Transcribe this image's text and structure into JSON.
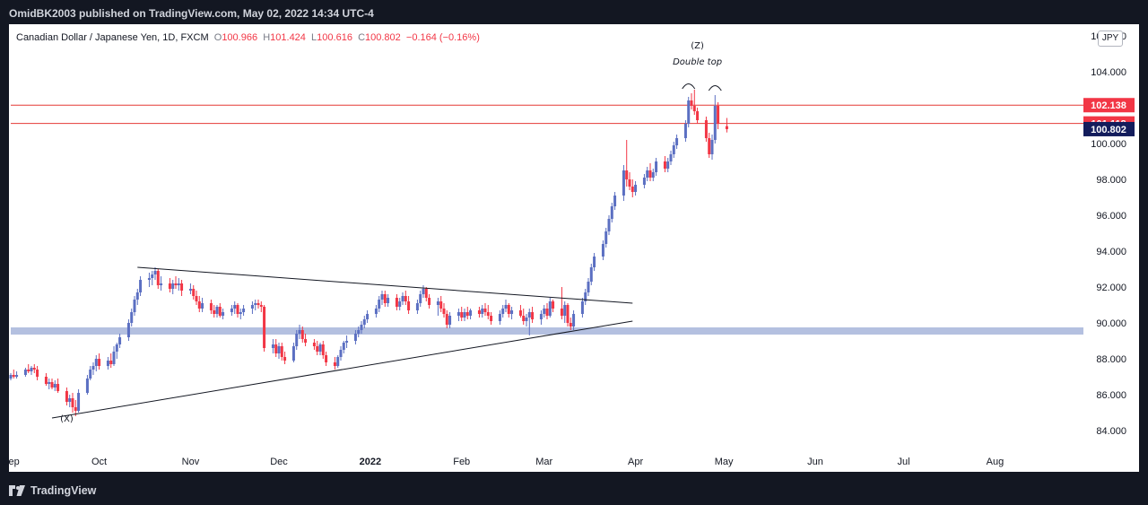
{
  "header": {
    "publisher_line": "OmidBK2003 published on TradingView.com, May 02, 2022 14:34 UTC-4"
  },
  "legend": {
    "symbol": "Canadian Dollar / Japanese Yen, 1D, FXCM",
    "open_label": "O",
    "open": "100.966",
    "high_label": "H",
    "high": "101.424",
    "low_label": "L",
    "low": "100.616",
    "close_label": "C",
    "close": "100.802",
    "change": "−0.164 (−0.16%)"
  },
  "currency_badge": "JPY",
  "footer": {
    "brand": "TradingView"
  },
  "colors": {
    "up": "#5b6fc2",
    "down": "#f23645",
    "support_zone": "#b4c0e0",
    "hline": "#e53935",
    "last_price_bg": "#131d5c"
  },
  "chart_data": {
    "type": "candlestick",
    "title": "Canadian Dollar / Japanese Yen, 1D, FXCM",
    "x_tick_labels": [
      "Sep",
      "Oct",
      "Nov",
      "Dec",
      "2022",
      "Feb",
      "Mar",
      "Apr",
      "May",
      "Jun",
      "Jul",
      "Aug"
    ],
    "x_range": [
      "2021-09-01",
      "2022-08-31"
    ],
    "y_range": [
      83.0,
      106.0
    ],
    "y_tick_labels": [
      "84.000",
      "86.000",
      "88.000",
      "90.000",
      "92.000",
      "94.000",
      "96.000",
      "98.000",
      "100.000",
      "102.000",
      "104.000",
      "106.000"
    ],
    "price_labels": [
      {
        "text": "102.138",
        "value": 102.138,
        "color": "#f23645"
      },
      {
        "text": "101.118",
        "value": 101.118,
        "color": "#f23645"
      },
      {
        "text": "100.802",
        "value": 100.802,
        "color": "#131d5c"
      }
    ],
    "horizontal_lines": [
      102.138,
      101.118
    ],
    "support_zone": [
      89.35,
      89.75
    ],
    "trendlines": [
      {
        "from": [
          "2021-09-15",
          84.7
        ],
        "to": [
          "2022-03-31",
          90.1
        ]
      },
      {
        "from": [
          "2021-10-14",
          93.1
        ],
        "to": [
          "2022-03-31",
          91.1
        ]
      }
    ],
    "annotations": [
      {
        "text": "(X)",
        "date": "2021-09-20",
        "value": 84.5
      },
      {
        "text": "(Z)",
        "date": "2022-04-22",
        "value": 105.3
      },
      {
        "text": "Double top",
        "date": "2022-04-22",
        "value": 104.4
      }
    ],
    "candles": [
      [
        "2021-09-01",
        86.9,
        87.2,
        86.8,
        87.1
      ],
      [
        "2021-09-02",
        87.1,
        87.4,
        86.9,
        87.0
      ],
      [
        "2021-09-03",
        87.0,
        87.3,
        86.9,
        87.1
      ],
      [
        "2021-09-06",
        87.1,
        87.5,
        87.0,
        87.4
      ],
      [
        "2021-09-07",
        87.4,
        87.7,
        87.2,
        87.3
      ],
      [
        "2021-09-08",
        87.3,
        87.6,
        87.1,
        87.5
      ],
      [
        "2021-09-09",
        87.5,
        87.7,
        87.2,
        87.4
      ],
      [
        "2021-09-10",
        87.4,
        87.6,
        86.8,
        87.0
      ],
      [
        "2021-09-13",
        87.0,
        87.2,
        86.5,
        86.6
      ],
      [
        "2021-09-14",
        86.6,
        86.9,
        86.3,
        86.7
      ],
      [
        "2021-09-15",
        86.7,
        86.9,
        86.3,
        86.4
      ],
      [
        "2021-09-16",
        86.4,
        86.8,
        86.2,
        86.6
      ],
      [
        "2021-09-17",
        86.6,
        86.9,
        86.1,
        86.2
      ],
      [
        "2021-09-20",
        86.2,
        86.4,
        85.4,
        85.6
      ],
      [
        "2021-09-21",
        85.6,
        86.0,
        85.3,
        85.8
      ],
      [
        "2021-09-22",
        85.8,
        86.1,
        85.0,
        85.3
      ],
      [
        "2021-09-23",
        85.3,
        85.7,
        84.8,
        85.1
      ],
      [
        "2021-09-24",
        85.1,
        86.3,
        85.0,
        86.1
      ],
      [
        "2021-09-27",
        86.1,
        87.1,
        86.0,
        86.9
      ],
      [
        "2021-09-28",
        86.9,
        87.6,
        86.8,
        87.4
      ],
      [
        "2021-09-29",
        87.4,
        87.8,
        87.1,
        87.6
      ],
      [
        "2021-09-30",
        87.6,
        88.2,
        87.3,
        88.0
      ],
      [
        "2021-10-01",
        88.0,
        88.3,
        87.4,
        87.6
      ],
      [
        "2021-10-04",
        87.6,
        88.1,
        87.4,
        87.9
      ],
      [
        "2021-10-05",
        87.9,
        88.3,
        87.5,
        87.7
      ],
      [
        "2021-10-06",
        87.7,
        88.7,
        87.6,
        88.4
      ],
      [
        "2021-10-07",
        88.4,
        88.9,
        88.0,
        88.8
      ],
      [
        "2021-10-08",
        88.8,
        89.4,
        88.6,
        89.2
      ],
      [
        "2021-10-11",
        89.2,
        90.2,
        89.0,
        90.0
      ],
      [
        "2021-10-12",
        90.0,
        90.8,
        89.8,
        90.6
      ],
      [
        "2021-10-13",
        90.6,
        91.5,
        90.4,
        91.3
      ],
      [
        "2021-10-14",
        91.3,
        91.9,
        91.0,
        91.7
      ],
      [
        "2021-10-15",
        91.7,
        92.6,
        91.5,
        92.4
      ],
      [
        "2021-10-18",
        92.4,
        92.8,
        92.0,
        92.5
      ],
      [
        "2021-10-19",
        92.5,
        92.9,
        92.1,
        92.7
      ],
      [
        "2021-10-20",
        92.7,
        93.1,
        92.4,
        92.9
      ],
      [
        "2021-10-21",
        92.9,
        93.0,
        91.9,
        92.1
      ],
      [
        "2021-10-22",
        92.1,
        92.6,
        91.8,
        92.2
      ],
      [
        "2021-10-25",
        92.2,
        92.5,
        91.7,
        91.9
      ],
      [
        "2021-10-26",
        91.9,
        92.4,
        91.6,
        92.2
      ],
      [
        "2021-10-27",
        92.2,
        92.6,
        91.9,
        92.1
      ],
      [
        "2021-10-28",
        92.1,
        92.5,
        91.8,
        92.2
      ],
      [
        "2021-10-29",
        92.2,
        92.4,
        91.5,
        91.8
      ],
      [
        "2021-11-01",
        91.8,
        92.2,
        91.6,
        91.9
      ],
      [
        "2021-11-02",
        91.9,
        92.1,
        91.3,
        91.5
      ],
      [
        "2021-11-03",
        91.5,
        91.8,
        91.0,
        91.2
      ],
      [
        "2021-11-04",
        91.2,
        91.5,
        90.6,
        90.8
      ],
      [
        "2021-11-05",
        90.8,
        91.4,
        90.6,
        91.1
      ],
      [
        "2021-11-08",
        91.1,
        91.3,
        90.5,
        90.7
      ],
      [
        "2021-11-09",
        90.7,
        91.0,
        90.3,
        90.5
      ],
      [
        "2021-11-10",
        90.5,
        91.0,
        90.3,
        90.9
      ],
      [
        "2021-11-11",
        90.9,
        91.1,
        90.3,
        90.4
      ],
      [
        "2021-11-12",
        90.4,
        90.8,
        90.2,
        90.6
      ],
      [
        "2021-11-15",
        90.6,
        91.0,
        90.4,
        90.8
      ],
      [
        "2021-11-16",
        90.8,
        91.2,
        90.5,
        91.0
      ],
      [
        "2021-11-17",
        91.0,
        91.1,
        90.3,
        90.5
      ],
      [
        "2021-11-18",
        90.5,
        90.8,
        90.2,
        90.6
      ],
      [
        "2021-11-19",
        90.6,
        91.0,
        90.4,
        90.8
      ],
      [
        "2021-11-22",
        90.8,
        91.2,
        90.5,
        91.0
      ],
      [
        "2021-11-23",
        91.0,
        91.3,
        90.7,
        91.1
      ],
      [
        "2021-11-24",
        91.1,
        91.3,
        90.8,
        91.0
      ],
      [
        "2021-11-25",
        91.0,
        91.2,
        90.6,
        90.9
      ],
      [
        "2021-11-26",
        90.9,
        91.0,
        88.4,
        88.6
      ],
      [
        "2021-11-29",
        88.6,
        89.1,
        88.3,
        88.8
      ],
      [
        "2021-11-30",
        88.8,
        89.1,
        88.1,
        88.3
      ],
      [
        "2021-12-01",
        88.3,
        88.9,
        88.0,
        88.7
      ],
      [
        "2021-12-02",
        88.7,
        88.9,
        87.9,
        88.1
      ],
      [
        "2021-12-03",
        88.1,
        88.4,
        87.7,
        87.9
      ],
      [
        "2021-12-06",
        87.9,
        88.9,
        87.8,
        88.7
      ],
      [
        "2021-12-07",
        88.7,
        89.6,
        88.5,
        89.4
      ],
      [
        "2021-12-08",
        89.4,
        89.9,
        89.1,
        89.6
      ],
      [
        "2021-12-09",
        89.6,
        89.8,
        88.9,
        89.1
      ],
      [
        "2021-12-10",
        89.1,
        89.4,
        88.7,
        88.9
      ],
      [
        "2021-12-13",
        88.9,
        89.1,
        88.5,
        88.7
      ],
      [
        "2021-12-14",
        88.7,
        89.0,
        88.2,
        88.4
      ],
      [
        "2021-12-15",
        88.4,
        88.9,
        88.2,
        88.8
      ],
      [
        "2021-12-16",
        88.8,
        89.0,
        88.0,
        88.2
      ],
      [
        "2021-12-17",
        88.2,
        88.4,
        87.6,
        87.8
      ],
      [
        "2021-12-20",
        87.8,
        88.1,
        87.4,
        87.6
      ],
      [
        "2021-12-21",
        87.6,
        88.2,
        87.5,
        88.1
      ],
      [
        "2021-12-22",
        88.1,
        88.7,
        87.9,
        88.5
      ],
      [
        "2021-12-23",
        88.5,
        89.0,
        88.3,
        88.9
      ],
      [
        "2021-12-24",
        88.9,
        89.3,
        88.6,
        89.0
      ],
      [
        "2021-12-27",
        89.0,
        89.6,
        88.8,
        89.4
      ],
      [
        "2021-12-28",
        89.4,
        89.8,
        89.2,
        89.6
      ],
      [
        "2021-12-29",
        89.6,
        90.1,
        89.4,
        89.9
      ],
      [
        "2021-12-30",
        89.9,
        90.4,
        89.7,
        90.2
      ],
      [
        "2021-12-31",
        90.2,
        90.7,
        90.0,
        90.5
      ],
      [
        "2022-01-03",
        90.5,
        91.0,
        90.3,
        90.8
      ],
      [
        "2022-01-04",
        90.8,
        91.5,
        90.6,
        91.3
      ],
      [
        "2022-01-05",
        91.3,
        91.8,
        91.0,
        91.6
      ],
      [
        "2022-01-06",
        91.6,
        91.8,
        90.9,
        91.1
      ],
      [
        "2022-01-07",
        91.1,
        91.6,
        90.9,
        91.4
      ],
      [
        "2022-01-10",
        91.4,
        91.6,
        90.7,
        90.9
      ],
      [
        "2022-01-11",
        90.9,
        91.4,
        90.7,
        91.2
      ],
      [
        "2022-01-12",
        91.2,
        91.7,
        91.0,
        91.5
      ],
      [
        "2022-01-13",
        91.5,
        91.8,
        91.0,
        91.2
      ],
      [
        "2022-01-14",
        91.2,
        91.5,
        90.5,
        90.7
      ],
      [
        "2022-01-17",
        90.7,
        91.3,
        90.5,
        91.1
      ],
      [
        "2022-01-18",
        91.1,
        91.8,
        90.9,
        91.6
      ],
      [
        "2022-01-19",
        91.6,
        92.1,
        91.4,
        91.9
      ],
      [
        "2022-01-20",
        91.9,
        92.0,
        91.2,
        91.4
      ],
      [
        "2022-01-21",
        91.4,
        91.6,
        90.8,
        91.0
      ],
      [
        "2022-01-24",
        91.0,
        91.4,
        90.4,
        91.2
      ],
      [
        "2022-01-25",
        91.2,
        91.5,
        90.6,
        90.8
      ],
      [
        "2022-01-26",
        90.8,
        91.1,
        90.3,
        90.5
      ],
      [
        "2022-01-27",
        90.5,
        90.7,
        89.7,
        89.9
      ],
      [
        "2022-01-28",
        89.9,
        90.6,
        89.7,
        90.4
      ],
      [
        "2022-01-31",
        90.4,
        90.8,
        90.1,
        90.6
      ],
      [
        "2022-02-01",
        90.6,
        90.9,
        90.1,
        90.3
      ],
      [
        "2022-02-02",
        90.3,
        90.8,
        90.1,
        90.6
      ],
      [
        "2022-02-03",
        90.6,
        90.9,
        90.2,
        90.4
      ],
      [
        "2022-02-04",
        90.4,
        90.8,
        90.2,
        90.7
      ],
      [
        "2022-02-07",
        90.7,
        90.9,
        90.3,
        90.5
      ],
      [
        "2022-02-08",
        90.5,
        91.0,
        90.3,
        90.8
      ],
      [
        "2022-02-09",
        90.8,
        91.1,
        90.4,
        90.6
      ],
      [
        "2022-02-10",
        90.6,
        91.0,
        90.2,
        90.4
      ],
      [
        "2022-02-11",
        90.4,
        90.6,
        89.9,
        90.1
      ],
      [
        "2022-02-14",
        90.1,
        90.7,
        89.9,
        90.5
      ],
      [
        "2022-02-15",
        90.5,
        91.0,
        90.3,
        90.8
      ],
      [
        "2022-02-16",
        90.8,
        91.3,
        90.6,
        91.0
      ],
      [
        "2022-02-17",
        91.0,
        91.1,
        90.3,
        90.5
      ],
      [
        "2022-02-18",
        90.5,
        90.9,
        90.2,
        90.7
      ],
      [
        "2022-02-21",
        90.7,
        91.0,
        90.3,
        90.4
      ],
      [
        "2022-02-22",
        90.4,
        90.8,
        89.9,
        90.1
      ],
      [
        "2022-02-23",
        90.1,
        90.5,
        89.8,
        90.3
      ],
      [
        "2022-02-24",
        90.3,
        90.8,
        89.3,
        90.6
      ],
      [
        "2022-02-25",
        90.6,
        90.9,
        90.0,
        90.2
      ],
      [
        "2022-02-28",
        90.2,
        90.7,
        89.9,
        90.5
      ],
      [
        "2022-03-01",
        90.5,
        91.0,
        90.3,
        90.8
      ],
      [
        "2022-03-02",
        90.8,
        91.1,
        90.2,
        90.4
      ],
      [
        "2022-03-03",
        90.4,
        91.4,
        90.3,
        91.2
      ],
      [
        "2022-03-04",
        91.2,
        91.3,
        90.6,
        90.8
      ],
      [
        "2022-03-07",
        90.8,
        92.0,
        90.2,
        90.4
      ],
      [
        "2022-03-08",
        90.4,
        91.2,
        90.0,
        91.0
      ],
      [
        "2022-03-09",
        91.0,
        91.1,
        89.8,
        90.0
      ],
      [
        "2022-03-10",
        90.0,
        90.3,
        89.6,
        89.8
      ],
      [
        "2022-03-11",
        89.8,
        90.7,
        89.6,
        90.5
      ],
      [
        "2022-03-14",
        90.5,
        91.4,
        90.3,
        91.2
      ],
      [
        "2022-03-15",
        91.2,
        91.9,
        91.0,
        91.7
      ],
      [
        "2022-03-16",
        91.7,
        92.5,
        91.5,
        92.3
      ],
      [
        "2022-03-17",
        92.3,
        93.3,
        92.1,
        93.1
      ],
      [
        "2022-03-18",
        93.1,
        93.9,
        92.9,
        93.7
      ],
      [
        "2022-03-21",
        93.7,
        94.6,
        93.5,
        94.4
      ],
      [
        "2022-03-22",
        94.4,
        95.3,
        94.2,
        95.1
      ],
      [
        "2022-03-23",
        95.1,
        96.0,
        94.9,
        95.8
      ],
      [
        "2022-03-24",
        95.8,
        96.7,
        95.6,
        96.5
      ],
      [
        "2022-03-25",
        96.5,
        97.3,
        96.3,
        97.1
      ],
      [
        "2022-03-28",
        97.1,
        98.8,
        96.8,
        98.5
      ],
      [
        "2022-03-29",
        98.5,
        100.2,
        97.6,
        98.0
      ],
      [
        "2022-03-30",
        98.0,
        98.4,
        97.4,
        97.6
      ],
      [
        "2022-03-31",
        97.6,
        98.0,
        97.0,
        97.3
      ],
      [
        "2022-04-01",
        97.3,
        97.9,
        97.1,
        97.7
      ],
      [
        "2022-04-04",
        97.7,
        98.3,
        97.5,
        98.1
      ],
      [
        "2022-04-05",
        98.1,
        98.7,
        97.9,
        98.5
      ],
      [
        "2022-04-06",
        98.5,
        98.9,
        97.9,
        98.1
      ],
      [
        "2022-04-07",
        98.1,
        98.6,
        97.9,
        98.4
      ],
      [
        "2022-04-08",
        98.4,
        99.2,
        98.2,
        99.0
      ],
      [
        "2022-04-11",
        99.0,
        99.3,
        98.4,
        98.6
      ],
      [
        "2022-04-12",
        98.6,
        99.2,
        98.4,
        99.0
      ],
      [
        "2022-04-13",
        99.0,
        99.6,
        98.8,
        99.4
      ],
      [
        "2022-04-14",
        99.4,
        100.1,
        99.2,
        99.9
      ],
      [
        "2022-04-15",
        99.9,
        100.5,
        99.7,
        100.3
      ],
      [
        "2022-04-18",
        100.3,
        101.3,
        100.1,
        101.1
      ],
      [
        "2022-04-19",
        101.1,
        102.6,
        100.9,
        102.4
      ],
      [
        "2022-04-20",
        102.4,
        102.8,
        101.9,
        102.1
      ],
      [
        "2022-04-21",
        102.1,
        103.0,
        101.6,
        101.8
      ],
      [
        "2022-04-22",
        101.8,
        102.0,
        101.1,
        101.3
      ],
      [
        "2022-04-25",
        101.3,
        101.5,
        100.1,
        100.3
      ],
      [
        "2022-04-26",
        100.3,
        100.6,
        99.2,
        99.4
      ],
      [
        "2022-04-27",
        99.4,
        100.5,
        99.1,
        100.2
      ],
      [
        "2022-04-28",
        100.2,
        102.7,
        100.0,
        102.1
      ],
      [
        "2022-04-29",
        102.1,
        102.3,
        100.8,
        101.1
      ],
      [
        "2022-05-02",
        100.966,
        101.424,
        100.616,
        100.802
      ]
    ]
  }
}
